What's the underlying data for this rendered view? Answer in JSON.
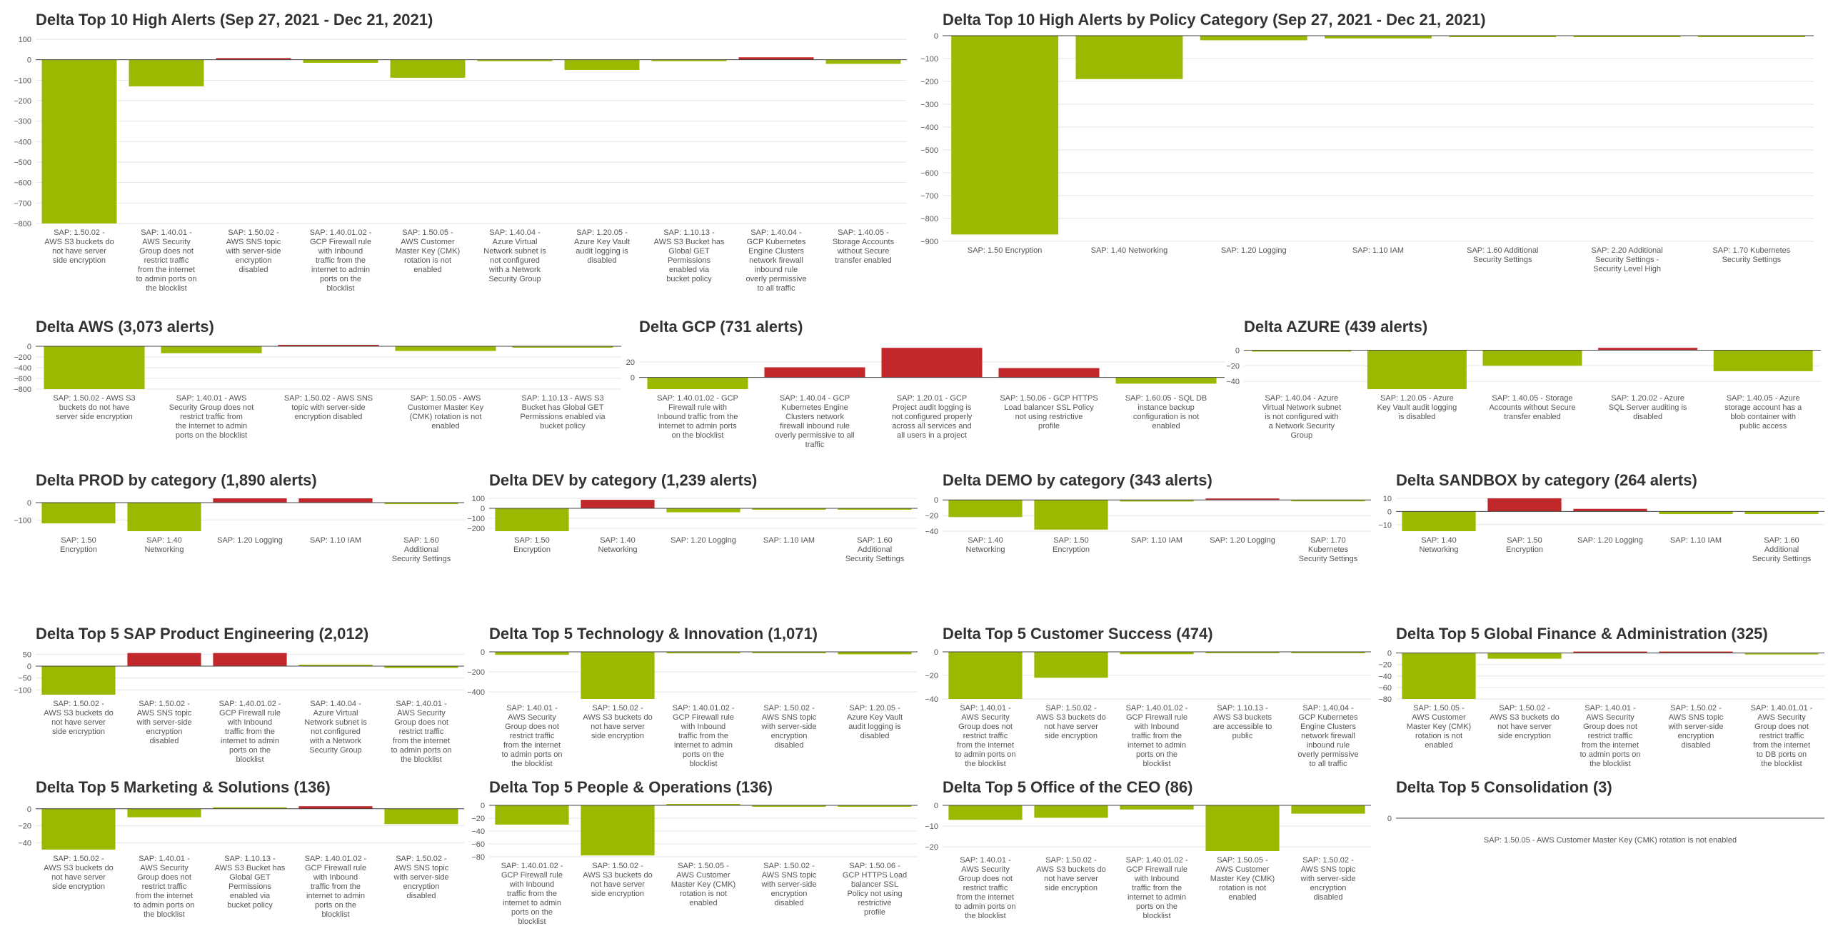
{
  "colors": {
    "positive": "#c0282b",
    "negative": "#9cb800",
    "grid": "#e6e6e6",
    "axis": "#444444",
    "text": "#555555"
  },
  "chart_data": [
    {
      "type": "bar",
      "title": "Delta Top 10 High Alerts (Sep 27, 2021 - Dec 21, 2021)",
      "categories": [
        "SAP: 1.50.02 - AWS S3 buckets do not have server side encryption",
        "SAP: 1.40.01 - AWS Security Group does not restrict traffic from the internet to admin ports on the blocklist",
        "SAP: 1.50.02 - AWS SNS topic with server-side encryption disabled",
        "SAP: 1.40.01.02 - GCP Firewall rule with Inbound traffic from the internet to admin ports on the blocklist",
        "SAP: 1.50.05 - AWS Customer Master Key (CMK) rotation is not enabled",
        "SAP: 1.40.04 - Azure Virtual Network subnet is not configured with a Network Security Group",
        "SAP: 1.20.05 - Azure Key Vault audit logging is disabled",
        "SAP: 1.10.13 - AWS S3 Bucket has Global GET Permissions enabled via bucket policy",
        "SAP: 1.40.04 - GCP Kubernetes Engine Clusters network firewall inbound rule overly permissive to all traffic",
        "SAP: 1.40.05 - Storage Accounts without Secure transfer enabled"
      ],
      "values": [
        -800,
        -130,
        8,
        -15,
        -88,
        -1,
        -50,
        -5,
        12,
        -20
      ],
      "ylim": [
        -800,
        100
      ],
      "yticks": [
        100,
        0,
        -100,
        -200,
        -300,
        -400,
        -500,
        -600,
        -700,
        -800
      ],
      "grid": true
    },
    {
      "type": "bar",
      "title": "Delta Top 10 High Alerts by Policy Category (Sep 27, 2021 - Dec 21, 2021)",
      "categories": [
        "SAP: 1.50 Encryption",
        "SAP: 1.40 Networking",
        "SAP: 1.20 Logging",
        "SAP: 1.10 IAM",
        "SAP: 1.60 Additional Security Settings",
        "SAP: 2.20 Additional Security Settings - Security Level High",
        "SAP: 1.70 Kubernetes Security Settings"
      ],
      "values": [
        -870,
        -190,
        -20,
        -12,
        -5,
        -1,
        -5
      ],
      "ylim": [
        -900,
        0
      ],
      "yticks": [
        0,
        -100,
        -200,
        -300,
        -400,
        -500,
        -600,
        -700,
        -800,
        -900
      ],
      "grid": true
    },
    {
      "type": "bar",
      "title": "Delta AWS (3,073 alerts)",
      "categories": [
        "SAP: 1.50.02 - AWS S3 buckets do not have server side encryption",
        "SAP: 1.40.01 - AWS Security Group does not restrict traffic from the internet to admin ports on the blocklist",
        "SAP: 1.50.02 - AWS SNS topic with server-side encryption disabled",
        "SAP: 1.50.05 - AWS Customer Master Key (CMK) rotation is not enabled",
        "SAP: 1.10.13 - AWS S3 Bucket has Global GET Permissions enabled via bucket policy"
      ],
      "values": [
        -800,
        -130,
        8,
        -88,
        -5
      ],
      "ylim": [
        -800,
        0
      ],
      "yticks": [
        0,
        -200,
        -400,
        -600,
        -800
      ],
      "grid": true
    },
    {
      "type": "bar",
      "title": "Delta GCP (731 alerts)",
      "categories": [
        "SAP: 1.40.01.02 - GCP Firewall rule with Inbound traffic from the internet to admin ports on the blocklist",
        "SAP: 1.40.04 - GCP Kubernetes Engine Clusters network firewall inbound rule overly permissive to all traffic",
        "SAP: 1.20.01 - GCP Project audit logging is not configured properly across all services and all users in a project",
        "SAP: 1.50.06 - GCP HTTPS Load balancer SSL Policy not using restrictive profile",
        "SAP: 1.60.05 - SQL DB instance backup configuration is not enabled"
      ],
      "values": [
        -15,
        13,
        38,
        12,
        -8
      ],
      "ylim": [
        -15,
        40
      ],
      "yticks": [
        20,
        0
      ],
      "grid": true
    },
    {
      "type": "bar",
      "title": "Delta AZURE (439 alerts)",
      "categories": [
        "SAP: 1.40.04 - Azure Virtual Network subnet is not configured with a Network Security Group",
        "SAP: 1.20.05 - Azure Key Vault audit logging is disabled",
        "SAP: 1.40.05 - Storage Accounts without Secure transfer enabled",
        "SAP: 1.20.02 - Azure SQL Server auditing is disabled",
        "SAP: 1.40.05 - Azure storage account has a blob container with public access"
      ],
      "values": [
        -1,
        -50,
        -20,
        3,
        -27
      ],
      "ylim": [
        -50,
        5
      ],
      "yticks": [
        0,
        -20,
        -40
      ],
      "grid": true
    },
    {
      "type": "bar",
      "title": "Delta PROD by category (1,890 alerts)",
      "categories": [
        "SAP: 1.50 Encryption",
        "SAP: 1.40 Networking",
        "SAP: 1.20 Logging",
        "SAP: 1.10 IAM",
        "SAP: 1.60 Additional Security Settings"
      ],
      "values": [
        -120,
        -165,
        25,
        25,
        -3
      ],
      "ylim": [
        -165,
        25
      ],
      "yticks": [
        0,
        -100
      ],
      "grid": true
    },
    {
      "type": "bar",
      "title": "Delta DEV by category (1,239 alerts)",
      "categories": [
        "SAP: 1.50 Encryption",
        "SAP: 1.40 Networking",
        "SAP: 1.20 Logging",
        "SAP: 1.10 IAM",
        "SAP: 1.60 Additional Security Settings"
      ],
      "values": [
        -230,
        85,
        -40,
        -8,
        -2
      ],
      "ylim": [
        -230,
        100
      ],
      "yticks": [
        100,
        0,
        -100,
        -200
      ],
      "grid": true
    },
    {
      "type": "bar",
      "title": "Delta DEMO by category (343 alerts)",
      "categories": [
        "SAP: 1.40 Networking",
        "SAP: 1.50 Encryption",
        "SAP: 1.10 IAM",
        "SAP: 1.20 Logging",
        "SAP: 1.70 Kubernetes Security Settings"
      ],
      "values": [
        -22,
        -38,
        -2,
        1,
        -1
      ],
      "ylim": [
        -40,
        2
      ],
      "yticks": [
        0,
        -20,
        -40
      ],
      "grid": true
    },
    {
      "type": "bar",
      "title": "Delta SANDBOX by category (264 alerts)",
      "categories": [
        "SAP: 1.40 Networking",
        "SAP: 1.50 Encryption",
        "SAP: 1.20 Logging",
        "SAP: 1.10 IAM",
        "SAP: 1.60 Additional Security Settings"
      ],
      "values": [
        -15,
        10,
        2,
        -2,
        -2
      ],
      "ylim": [
        -15,
        10
      ],
      "yticks": [
        10,
        0,
        -10
      ],
      "grid": true
    },
    {
      "type": "bar",
      "title": "Delta Top 5 SAP Product Engineering (2,012)",
      "categories": [
        "SAP: 1.50.02 - AWS S3 buckets do not have server side encryption",
        "SAP: 1.50.02 - AWS SNS topic with server-side encryption disabled",
        "SAP: 1.40.01.02 - GCP Firewall rule with Inbound traffic from the internet to admin ports on the blocklist",
        "SAP: 1.40.04 - Azure Virtual Network subnet is not configured with a Network Security Group",
        "SAP: 1.40.01 - AWS Security Group does not restrict traffic from the internet to admin ports on the blocklist"
      ],
      "values": [
        -120,
        55,
        55,
        0,
        -8
      ],
      "ylim": [
        -120,
        60
      ],
      "yticks": [
        50,
        0,
        -50,
        -100
      ],
      "grid": true
    },
    {
      "type": "bar",
      "title": "Delta Top 5 Technology & Innovation (1,071)",
      "categories": [
        "SAP: 1.40.01 - AWS Security Group does not restrict traffic from the internet to admin ports on the blocklist",
        "SAP: 1.50.02 - AWS S3 buckets do not have server side encryption",
        "SAP: 1.40.01.02 - GCP Firewall rule with Inbound traffic from the internet to admin ports on the blocklist",
        "SAP: 1.50.02 - AWS SNS topic with server-side encryption disabled",
        "SAP: 1.20.05 - Azure Key Vault audit logging is disabled"
      ],
      "values": [
        -30,
        -470,
        -15,
        -8,
        -25
      ],
      "ylim": [
        -470,
        0
      ],
      "yticks": [
        0,
        -200,
        -400
      ],
      "grid": true
    },
    {
      "type": "bar",
      "title": "Delta Top 5 Customer Success (474)",
      "categories": [
        "SAP: 1.40.01 - AWS Security Group does not restrict traffic from the internet to admin ports on the blocklist",
        "SAP: 1.50.02 - AWS S3 buckets do not have server side encryption",
        "SAP: 1.40.01.02 - GCP Firewall rule with Inbound traffic from the internet to admin ports on the blocklist",
        "SAP: 1.10.13 - AWS S3 buckets are accessible to public",
        "SAP: 1.40.04 - GCP Kubernetes Engine Clusters network firewall inbound rule overly permissive to all traffic"
      ],
      "values": [
        -40,
        -22,
        -2,
        -1,
        -1
      ],
      "ylim": [
        -40,
        0
      ],
      "yticks": [
        0,
        -20,
        -40
      ],
      "grid": true
    },
    {
      "type": "bar",
      "title": "Delta Top 5 Global Finance & Administration (325)",
      "categories": [
        "SAP: 1.50.05 - AWS Customer Master Key (CMK) rotation is not enabled",
        "SAP: 1.50.02 - AWS S3 buckets do not have server side encryption",
        "SAP: 1.40.01 - AWS Security Group does not restrict traffic from the internet to admin ports on the blocklist",
        "SAP: 1.50.02 - AWS SNS topic with server-side encryption disabled",
        "SAP: 1.40.01.01 - AWS Security Group does not restrict traffic from the internet to DB ports on the blocklist"
      ],
      "values": [
        -80,
        -10,
        1,
        1,
        -1
      ],
      "ylim": [
        -80,
        2
      ],
      "yticks": [
        0,
        -20,
        -40,
        -60,
        -80
      ],
      "grid": true
    },
    {
      "type": "bar",
      "title": "Delta Top 5 Marketing & Solutions (136)",
      "categories": [
        "SAP: 1.50.02 - AWS S3 buckets do not have server side encryption",
        "SAP: 1.40.01 - AWS Security Group does not restrict traffic from the internet to admin ports on the blocklist",
        "SAP: 1.10.13 - AWS S3 Bucket has Global GET Permissions enabled via bucket policy",
        "SAP: 1.40.01.02 - GCP Firewall rule with Inbound traffic from the internet to admin ports on the blocklist",
        "SAP: 1.50.02 - AWS SNS topic with server-side encryption disabled"
      ],
      "values": [
        -48,
        -10,
        0,
        3,
        -18
      ],
      "ylim": [
        -48,
        4
      ],
      "yticks": [
        0,
        -20,
        -40
      ],
      "grid": true
    },
    {
      "type": "bar",
      "title": "Delta Top 5 People & Operations (136)",
      "categories": [
        "SAP: 1.40.01.02 - GCP Firewall rule with Inbound traffic from the internet to admin ports on the blocklist",
        "SAP: 1.50.02 - AWS S3 buckets do not have server side encryption",
        "SAP: 1.50.05 - AWS Customer Master Key (CMK) rotation is not enabled",
        "SAP: 1.50.02 - AWS SNS topic with server-side encryption disabled",
        "SAP: 1.50.06 - GCP HTTPS Load balancer SSL Policy not using restrictive profile"
      ],
      "values": [
        -30,
        -78,
        0,
        -2,
        -1
      ],
      "ylim": [
        -80,
        0
      ],
      "yticks": [
        0,
        -20,
        -40,
        -60,
        -80
      ],
      "grid": true
    },
    {
      "type": "bar",
      "title": "Delta Top 5 Office of the CEO (86)",
      "categories": [
        "SAP: 1.40.01 - AWS Security Group does not restrict traffic from the internet to admin ports on the blocklist",
        "SAP: 1.50.02 - AWS S3 buckets do not have server side encryption",
        "SAP: 1.40.01.02 - GCP Firewall rule with Inbound traffic from the internet to admin ports on the blocklist",
        "SAP: 1.50.05 - AWS Customer Master Key (CMK) rotation is not enabled",
        "SAP: 1.50.02 - AWS SNS topic with server-side encryption disabled"
      ],
      "values": [
        -7,
        -6,
        -2,
        -22,
        -4
      ],
      "ylim": [
        -22,
        0
      ],
      "yticks": [
        0,
        -10,
        -20
      ],
      "grid": true
    },
    {
      "type": "bar",
      "title": "Delta Top 5 Consolidation (3)",
      "categories": [
        "SAP: 1.50.05 - AWS Customer Master Key (CMK) rotation is not enabled"
      ],
      "values": [
        0
      ],
      "ylim": [
        -1,
        1
      ],
      "yticks": [
        0
      ],
      "grid": true
    }
  ]
}
